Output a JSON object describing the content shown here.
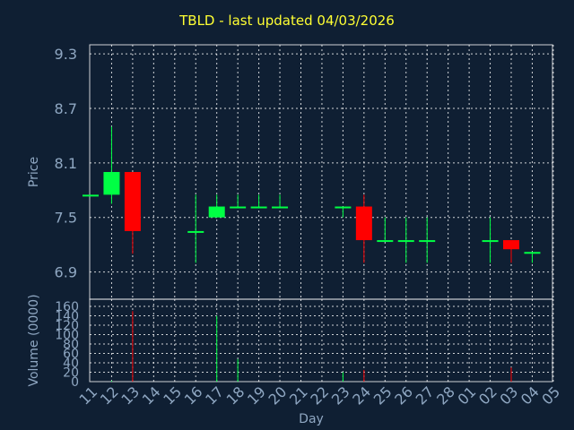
{
  "chart_data": {
    "type": "candlestick",
    "title": "TBLD - last updated 04/03/2026",
    "xlabel": "Day",
    "price_panel": {
      "ylabel": "Price",
      "ylim": [
        6.6,
        9.4
      ],
      "yticks": [
        "6.9",
        "7.5",
        "8.1",
        "8.7",
        "9.3"
      ],
      "grid": true
    },
    "volume_panel": {
      "ylabel": "Volume (0000)",
      "ylim": [
        0,
        160
      ],
      "yticks": [
        "0",
        "20",
        "40",
        "60",
        "80",
        "100",
        "120",
        "140",
        "160"
      ],
      "grid": true
    },
    "x_tick_labels": [
      "11",
      "12",
      "13",
      "14",
      "15",
      "16",
      "17",
      "18",
      "19",
      "20",
      "21",
      "22",
      "23",
      "24",
      "25",
      "26",
      "27",
      "28",
      "01",
      "02",
      "03",
      "04",
      "05"
    ],
    "candles": [
      {
        "day": "11",
        "open": 7.75,
        "high": 7.75,
        "low": 7.75,
        "close": 7.75,
        "volume": 0
      },
      {
        "day": "12",
        "open": 7.75,
        "high": 8.5,
        "low": 7.65,
        "close": 8.0,
        "volume": 2
      },
      {
        "day": "13",
        "open": 8.0,
        "high": 8.0,
        "low": 7.1,
        "close": 7.35,
        "volume": 150
      },
      {
        "day": "16",
        "open": 7.35,
        "high": 7.75,
        "low": 7.0,
        "close": 7.35,
        "volume": 0
      },
      {
        "day": "17",
        "open": 7.5,
        "high": 7.75,
        "low": 7.5,
        "close": 7.62,
        "volume": 140
      },
      {
        "day": "18",
        "open": 7.62,
        "high": 7.75,
        "low": 7.6,
        "close": 7.62,
        "volume": 48
      },
      {
        "day": "19",
        "open": 7.62,
        "high": 7.75,
        "low": 7.6,
        "close": 7.62,
        "volume": 0
      },
      {
        "day": "20",
        "open": 7.62,
        "high": 7.75,
        "low": 7.6,
        "close": 7.62,
        "volume": 0
      },
      {
        "day": "23",
        "open": 7.62,
        "high": 7.62,
        "low": 7.5,
        "close": 7.62,
        "volume": 20
      },
      {
        "day": "24",
        "open": 7.62,
        "high": 7.75,
        "low": 7.0,
        "close": 7.25,
        "volume": 25
      },
      {
        "day": "25",
        "open": 7.25,
        "high": 7.5,
        "low": 7.25,
        "close": 7.25,
        "volume": 0
      },
      {
        "day": "26",
        "open": 7.25,
        "high": 7.5,
        "low": 7.0,
        "close": 7.25,
        "volume": 0
      },
      {
        "day": "27",
        "open": 7.25,
        "high": 7.5,
        "low": 7.0,
        "close": 7.25,
        "volume": 0
      },
      {
        "day": "02",
        "open": 7.25,
        "high": 7.5,
        "low": 7.0,
        "close": 7.25,
        "volume": 0
      },
      {
        "day": "03",
        "open": 7.25,
        "high": 7.25,
        "low": 7.0,
        "close": 7.15,
        "volume": 30
      },
      {
        "day": "04",
        "open": 7.12,
        "high": 7.12,
        "low": 7.0,
        "close": 7.12,
        "volume": 0
      }
    ],
    "colors": {
      "background": "#0f1f33",
      "up": "#00ff44",
      "down": "#ff0000",
      "title": "#ffff33",
      "axis_text": "#8fa7c2",
      "grid": "#ffffff"
    }
  }
}
